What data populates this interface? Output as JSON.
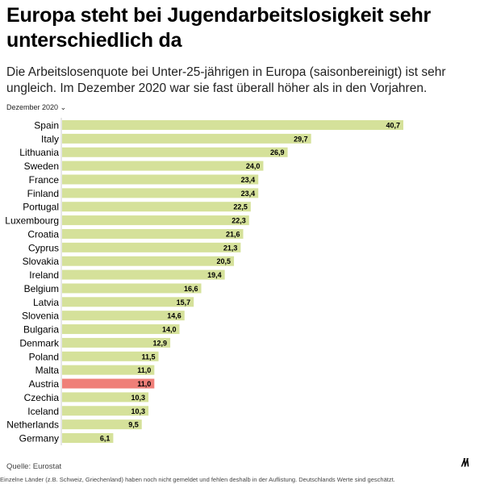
{
  "title": "Europa steht bei Jugendarbeitslosigkeit sehr unterschiedlich da",
  "subtitle": "Die Arbeitslosenquote bei Unter-25-jährigen in Europa (saisonbereinigt) ist sehr ungleich. Im Dezember 2020 war sie fast überall höher als in den Vorjahren.",
  "filter": {
    "selected": "Dezember 2020",
    "icon": "chevron-down-icon"
  },
  "chart_data": {
    "type": "bar",
    "orientation": "horizontal",
    "categories": [
      "Spain",
      "Italy",
      "Lithuania",
      "Sweden",
      "France",
      "Finland",
      "Portugal",
      "Luxembourg",
      "Croatia",
      "Cyprus",
      "Slovakia",
      "Ireland",
      "Belgium",
      "Latvia",
      "Slovenia",
      "Bulgaria",
      "Denmark",
      "Poland",
      "Malta",
      "Austria",
      "Czechia",
      "Iceland",
      "Netherlands",
      "Germany"
    ],
    "values": [
      40.7,
      29.7,
      26.9,
      24.0,
      23.4,
      23.4,
      22.5,
      22.3,
      21.6,
      21.3,
      20.5,
      19.4,
      16.6,
      15.7,
      14.6,
      14.0,
      12.9,
      11.5,
      11.0,
      11.0,
      10.3,
      10.3,
      9.5,
      6.1
    ],
    "labels": [
      "40,7",
      "29,7",
      "26,9",
      "24,0",
      "23,4",
      "23,4",
      "22,5",
      "22,3",
      "21,6",
      "21,3",
      "20,5",
      "19,4",
      "16,6",
      "15,7",
      "14,6",
      "14,0",
      "12,9",
      "11,5",
      "11,0",
      "11,0",
      "10,3",
      "10,3",
      "9,5",
      "6,1"
    ],
    "highlight": "Austria",
    "colors": {
      "default": "#d5e19a",
      "highlight": "#ef7f78"
    },
    "xlim": [
      0,
      40.7
    ]
  },
  "source": "Quelle: Eurostat",
  "note": "Einzelne Länder (z.B. Schweiz, Griechenland) haben noch nicht gemeldet und fehlen deshalb in der Auflistung. Deutschlands Werte sind geschätzt.",
  "logo": "M"
}
